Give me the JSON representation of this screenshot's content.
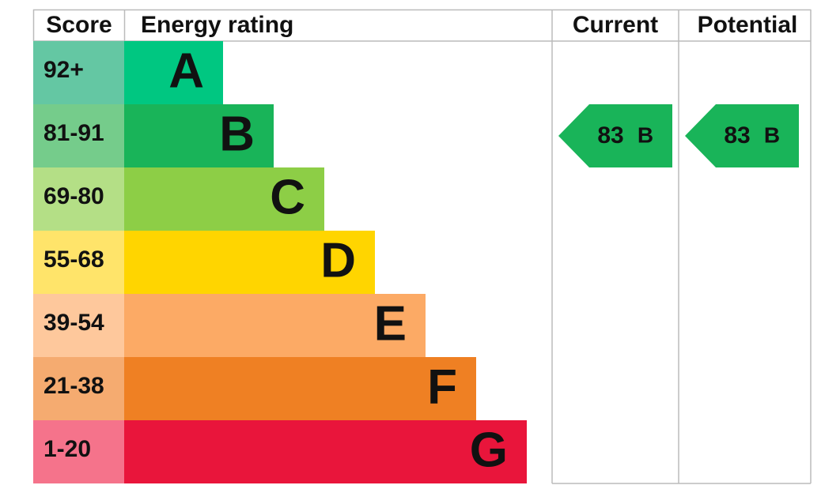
{
  "header": {
    "score": "Score",
    "rating": "Energy rating",
    "current": "Current",
    "potential": "Potential"
  },
  "bands": [
    {
      "score": "92+",
      "letter": "A",
      "score_color": "#64c7a3",
      "color": "#00c781"
    },
    {
      "score": "81-91",
      "letter": "B",
      "score_color": "#75cc8b",
      "color": "#19b459"
    },
    {
      "score": "69-80",
      "letter": "C",
      "score_color": "#b4df86",
      "color": "#8dce46"
    },
    {
      "score": "55-68",
      "letter": "D",
      "score_color": "#ffe46a",
      "color": "#ffd500"
    },
    {
      "score": "39-54",
      "letter": "E",
      "score_color": "#fec89c",
      "color": "#fcaa65"
    },
    {
      "score": "21-38",
      "letter": "F",
      "score_color": "#f5ab70",
      "color": "#ef8023"
    },
    {
      "score": "1-20",
      "letter": "G",
      "score_color": "#f5738b",
      "color": "#e9153b"
    }
  ],
  "current": {
    "value": 83,
    "letter": "B"
  },
  "potential": {
    "value": 83,
    "letter": "B"
  }
}
